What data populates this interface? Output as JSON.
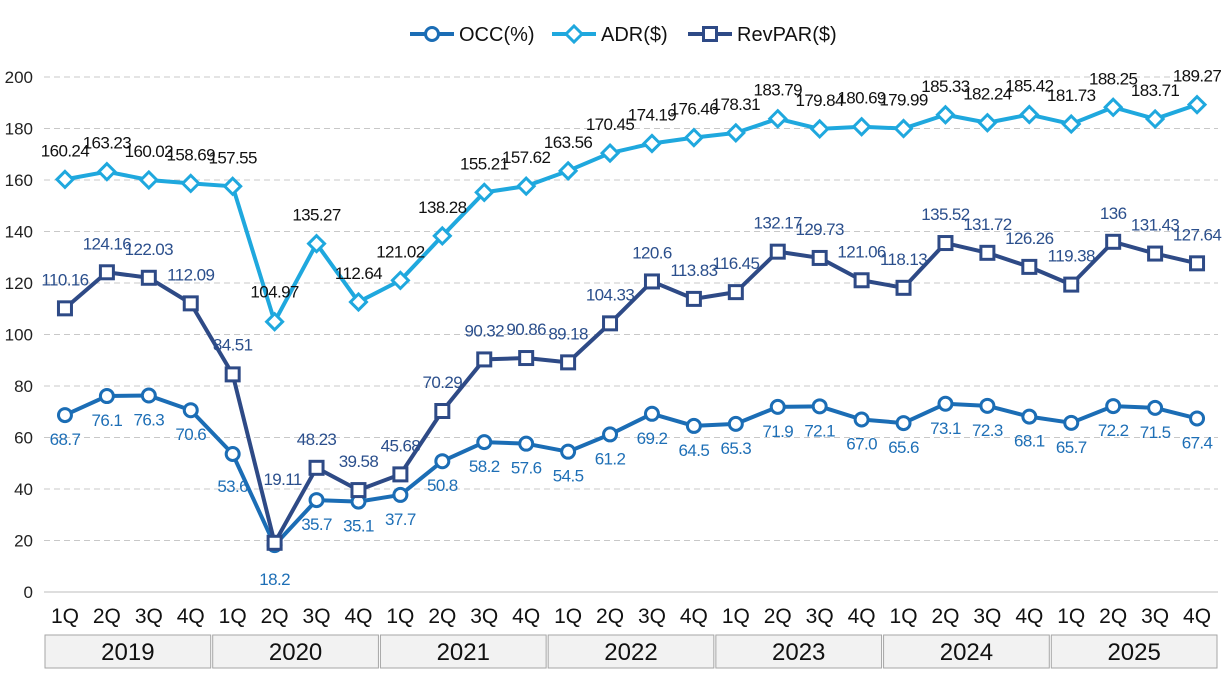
{
  "chart_data": {
    "type": "line",
    "title": "",
    "xlabel": "",
    "ylabel": "",
    "ylim": [
      0,
      200
    ],
    "yticks": [
      0,
      20,
      40,
      60,
      80,
      100,
      120,
      140,
      160,
      180,
      200
    ],
    "grid": "horizontal dashed",
    "legend": "top-center",
    "quarters": [
      "1Q",
      "2Q",
      "3Q",
      "4Q",
      "1Q",
      "2Q",
      "3Q",
      "4Q",
      "1Q",
      "2Q",
      "3Q",
      "4Q",
      "1Q",
      "2Q",
      "3Q",
      "4Q",
      "1Q",
      "2Q",
      "3Q",
      "4Q",
      "1Q",
      "2Q",
      "3Q",
      "4Q",
      "1Q",
      "2Q",
      "3Q",
      "4Q"
    ],
    "years": [
      "2019",
      "2020",
      "2021",
      "2022",
      "2023",
      "2024",
      "2025"
    ],
    "series": [
      {
        "name": "OCC(%)",
        "color": "#1b6db5",
        "label_color": "#1e6fb6",
        "marker": "circle",
        "values": [
          68.7,
          76.1,
          76.3,
          70.6,
          53.6,
          18.2,
          35.7,
          35.1,
          37.7,
          50.8,
          58.2,
          57.6,
          54.5,
          61.2,
          69.2,
          64.5,
          65.3,
          71.9,
          72.1,
          67.0,
          65.6,
          73.1,
          72.3,
          68.1,
          65.7,
          72.2,
          71.5,
          67.4
        ],
        "labels": [
          "68.7",
          "76.1",
          "76.3",
          "70.6",
          "53.6",
          "18.2",
          "35.7",
          "35.1",
          "37.7",
          "50.8",
          "58.2",
          "57.6",
          "54.5",
          "61.2",
          "69.2",
          "64.5",
          "65.3",
          "71.9",
          "72.1",
          "67.0",
          "65.6",
          "73.1",
          "72.3",
          "68.1",
          "65.7",
          "72.2",
          "71.5",
          "67.4"
        ]
      },
      {
        "name": "ADR($)",
        "color": "#1fa8de",
        "label_color": "#111111",
        "marker": "diamond",
        "values": [
          160.24,
          163.23,
          160.02,
          158.69,
          157.55,
          104.97,
          135.27,
          112.64,
          121.02,
          138.28,
          155.21,
          157.62,
          163.56,
          170.45,
          174.19,
          176.46,
          178.31,
          183.79,
          179.84,
          180.69,
          179.99,
          185.33,
          182.24,
          185.42,
          181.73,
          188.25,
          183.71,
          189.27
        ],
        "labels": [
          "160.24",
          "163.23",
          "160.02",
          "158.69",
          "157.55",
          "104.97",
          "135.27",
          "112.64",
          "121.02",
          "138.28",
          "155.21",
          "157.62",
          "163.56",
          "170.45",
          "174.19",
          "176.46",
          "178.31",
          "183.79",
          "179.84",
          "180.69",
          "179.99",
          "185.33",
          "182.24",
          "185.42",
          "181.73",
          "188.25",
          "183.71",
          "189.27"
        ]
      },
      {
        "name": "RevPAR($)",
        "color": "#2e4a86",
        "label_color": "#2b4f8c",
        "marker": "square",
        "values": [
          110.16,
          124.16,
          122.03,
          112.09,
          84.51,
          19.11,
          48.23,
          39.58,
          45.68,
          70.29,
          90.32,
          90.86,
          89.18,
          104.33,
          120.6,
          113.83,
          116.45,
          132.17,
          129.73,
          121.06,
          118.13,
          135.52,
          131.72,
          126.26,
          119.38,
          136,
          131.43,
          127.64
        ],
        "labels": [
          "110.16",
          "124.16",
          "122.03",
          "112.09",
          "84.51",
          "19.11",
          "48.23",
          "39.58",
          "45.68",
          "70.29",
          "90.32",
          "90.86",
          "89.18",
          "104.33",
          "120.6",
          "113.83",
          "116.45",
          "132.17",
          "129.73",
          "121.06",
          "118.13",
          "135.52",
          "131.72",
          "126.26",
          "119.38",
          "136",
          "131.43",
          "127.64"
        ]
      }
    ]
  }
}
